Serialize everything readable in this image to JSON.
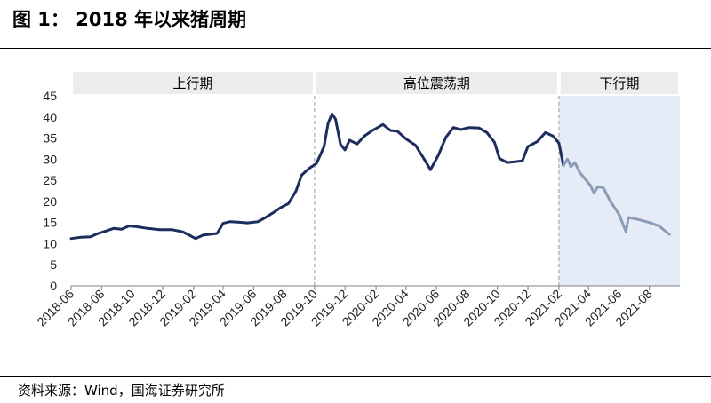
{
  "header": {
    "figure_title": "图 1：  2018 年以来猪周期"
  },
  "footer": {
    "source": "资料来源：Wind，国海证券研究所"
  },
  "chart_data": {
    "type": "line",
    "title": "2018 年以来猪周期",
    "xlabel": "",
    "ylabel": "",
    "ylim": [
      0,
      45
    ],
    "yticks": [
      0,
      5,
      10,
      15,
      20,
      25,
      30,
      35,
      40,
      45
    ],
    "x_tick_labels": [
      "2018-06",
      "2018-08",
      "2018-10",
      "2018-12",
      "2019-02",
      "2019-04",
      "2019-06",
      "2019-08",
      "2019-10",
      "2019-12",
      "2020-02",
      "2020-04",
      "2020-06",
      "2020-08",
      "2020-10",
      "2020-12",
      "2021-02",
      "2021-04",
      "2021-06",
      "2021-08"
    ],
    "grid": false,
    "phases": [
      {
        "label": "上行期",
        "start": "2018-06",
        "end": "2019-10"
      },
      {
        "label": "高位震荡期",
        "start": "2019-10",
        "end": "2021-02"
      },
      {
        "label": "下行期",
        "start": "2021-02",
        "end": "2021-10",
        "shaded": true
      }
    ],
    "series": [
      {
        "color": "#1c2d5e",
        "points": [
          [
            "2018-06-01",
            11.2
          ],
          [
            "2018-06-20",
            11.5
          ],
          [
            "2018-07-10",
            11.6
          ],
          [
            "2018-07-25",
            12.4
          ],
          [
            "2018-08-10",
            13.0
          ],
          [
            "2018-08-25",
            13.6
          ],
          [
            "2018-09-10",
            13.4
          ],
          [
            "2018-09-25",
            14.2
          ],
          [
            "2018-10-10",
            14.0
          ],
          [
            "2018-11-01",
            13.6
          ],
          [
            "2018-11-25",
            13.3
          ],
          [
            "2018-12-20",
            13.3
          ],
          [
            "2019-01-10",
            12.8
          ],
          [
            "2019-01-25",
            11.9
          ],
          [
            "2019-02-05",
            11.2
          ],
          [
            "2019-02-20",
            12.0
          ],
          [
            "2019-03-05",
            12.2
          ],
          [
            "2019-03-20",
            12.4
          ],
          [
            "2019-04-01",
            14.8
          ],
          [
            "2019-04-15",
            15.2
          ],
          [
            "2019-05-01",
            15.1
          ],
          [
            "2019-05-20",
            14.9
          ],
          [
            "2019-06-10",
            15.2
          ],
          [
            "2019-06-25",
            16.2
          ],
          [
            "2019-07-10",
            17.3
          ],
          [
            "2019-07-25",
            18.5
          ],
          [
            "2019-08-10",
            19.5
          ],
          [
            "2019-08-25",
            22.5
          ],
          [
            "2019-09-05",
            26.2
          ],
          [
            "2019-09-20",
            27.8
          ],
          [
            "2019-10-05",
            29.0
          ],
          [
            "2019-10-20",
            33.0
          ],
          [
            "2019-10-28",
            38.5
          ],
          [
            "2019-11-05",
            40.7
          ],
          [
            "2019-11-12",
            39.5
          ],
          [
            "2019-11-22",
            33.5
          ],
          [
            "2019-12-01",
            32.2
          ],
          [
            "2019-12-10",
            34.5
          ],
          [
            "2019-12-25",
            33.6
          ],
          [
            "2020-01-10",
            35.6
          ],
          [
            "2020-01-25",
            36.8
          ],
          [
            "2020-02-15",
            38.2
          ],
          [
            "2020-03-01",
            36.8
          ],
          [
            "2020-03-15",
            36.6
          ],
          [
            "2020-04-01",
            34.8
          ],
          [
            "2020-04-20",
            33.3
          ],
          [
            "2020-05-05",
            30.5
          ],
          [
            "2020-05-20",
            27.5
          ],
          [
            "2020-06-05",
            31.0
          ],
          [
            "2020-06-20",
            35.2
          ],
          [
            "2020-07-05",
            37.5
          ],
          [
            "2020-07-20",
            37.0
          ],
          [
            "2020-08-05",
            37.5
          ],
          [
            "2020-08-25",
            37.4
          ],
          [
            "2020-09-10",
            36.3
          ],
          [
            "2020-09-25",
            34.0
          ],
          [
            "2020-10-05",
            30.2
          ],
          [
            "2020-10-20",
            29.2
          ],
          [
            "2020-11-05",
            29.4
          ],
          [
            "2020-11-20",
            29.6
          ],
          [
            "2020-12-01",
            33.0
          ],
          [
            "2020-12-20",
            34.2
          ],
          [
            "2021-01-05",
            36.3
          ],
          [
            "2021-01-20",
            35.5
          ],
          [
            "2021-02-01",
            33.8
          ],
          [
            "2021-02-10",
            28.5
          ]
        ]
      },
      {
        "color": "#8a9cb8",
        "points": [
          [
            "2021-02-10",
            28.5
          ],
          [
            "2021-02-18",
            30.0
          ],
          [
            "2021-02-25",
            28.2
          ],
          [
            "2021-03-05",
            29.2
          ],
          [
            "2021-03-15",
            26.8
          ],
          [
            "2021-04-05",
            23.8
          ],
          [
            "2021-04-12",
            22.0
          ],
          [
            "2021-04-20",
            23.5
          ],
          [
            "2021-05-01",
            23.2
          ],
          [
            "2021-05-15",
            20.0
          ],
          [
            "2021-06-01",
            17.0
          ],
          [
            "2021-06-15",
            12.8
          ],
          [
            "2021-06-20",
            16.2
          ],
          [
            "2021-07-10",
            15.7
          ],
          [
            "2021-08-01",
            15.0
          ],
          [
            "2021-08-20",
            14.2
          ],
          [
            "2021-09-10",
            12.2
          ]
        ]
      }
    ]
  }
}
